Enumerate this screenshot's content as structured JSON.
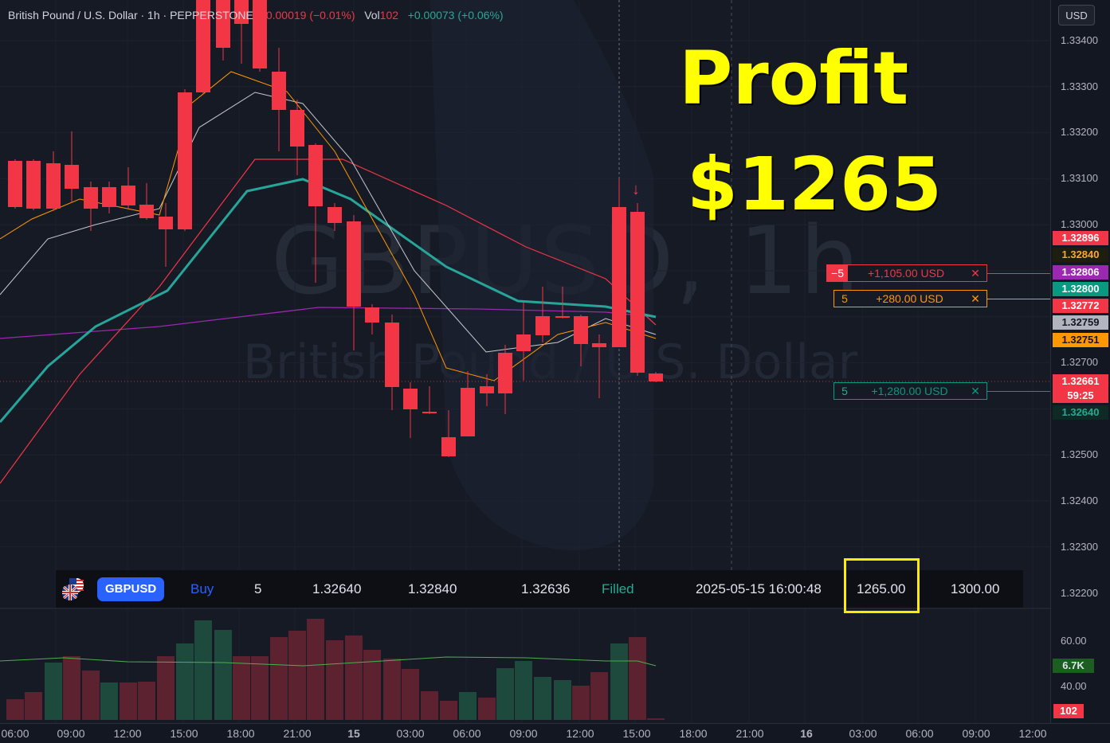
{
  "legend": {
    "symbol_desc": "British Pound / U.S. Dollar · 1h · PEPPERSTONE",
    "change": "−0.00019 (−0.01%)",
    "vol_label": "Vol",
    "vol_value": "102",
    "vol_change": "+0.00073 (+0.06%)"
  },
  "watermark": {
    "ticker": "GBPUSD, 1h",
    "name": "British Pound / U.S. Dollar"
  },
  "overlay": {
    "line1": "Profit",
    "line2": "$1265"
  },
  "axis": {
    "currency": "USD",
    "ticks": [
      "1.33400",
      "1.33300",
      "1.33200",
      "1.33100",
      "1.33000",
      "1.32700",
      "1.32500",
      "1.32400",
      "1.32300",
      "1.32200"
    ],
    "tags": [
      {
        "text": "1.32896",
        "bg": "#f23645",
        "fg": "#ffffff"
      },
      {
        "text": "1.32840",
        "bg": "#1e1e10",
        "fg": "#ffa726"
      },
      {
        "text": "1.32806",
        "bg": "#9c27b0",
        "fg": "#ffffff"
      },
      {
        "text": "1.32800",
        "bg": "#089981",
        "fg": "#ffffff"
      },
      {
        "text": "1.32772",
        "bg": "#f23645",
        "fg": "#ffffff"
      },
      {
        "text": "1.32759",
        "bg": "#b2b5be",
        "fg": "#131722"
      },
      {
        "text": "1.32751",
        "bg": "#ff9800",
        "fg": "#131722"
      },
      {
        "text": "1.32661",
        "bg": "#f23645",
        "fg": "#ffffff"
      },
      {
        "text": "59:25",
        "bg": "#f23645",
        "fg": "#ffffff"
      },
      {
        "text": "1.32640",
        "bg": "#0f2a25",
        "fg": "#22ab94"
      }
    ],
    "vol_ticks": [
      "60.00",
      "40.00"
    ],
    "vol_tags": [
      {
        "text": "6.7K",
        "bg": "#1b5e20",
        "fg": "#e0e3eb"
      },
      {
        "text": "102",
        "bg": "#f23645",
        "fg": "#ffffff"
      }
    ]
  },
  "orders": [
    {
      "qty": "−5",
      "pnl": "+1,105.00 USD",
      "close": "✕",
      "color": "#f23645",
      "qty_bg": "#f23645",
      "qty_fg": "#ffffff"
    },
    {
      "qty": "5",
      "pnl": "+280.00 USD",
      "close": "✕",
      "color": "#ff9800",
      "qty_bg": "#161a25",
      "qty_fg": "#ff9800"
    },
    {
      "qty": "5",
      "pnl": "+1,280.00 USD",
      "close": "✕",
      "color": "#089981",
      "qty_bg": "#161a25",
      "qty_fg": "#22ab94"
    }
  ],
  "trade": {
    "symbol": "GBPUSD",
    "side": "Buy",
    "qty": "5",
    "entry": "1.32640",
    "take_profit": "1.32840",
    "stop": "1.32636",
    "status": "Filled",
    "time": "2025-05-15 16:00:48",
    "profit": "1265.00",
    "target": "1300.00"
  },
  "time_axis": [
    "06:00",
    "09:00",
    "12:00",
    "15:00",
    "18:00",
    "21:00",
    "15",
    "03:00",
    "06:00",
    "09:00",
    "12:00",
    "15:00",
    "18:00",
    "21:00",
    "16",
    "03:00",
    "06:00",
    "09:00",
    "12:00"
  ],
  "colors": {
    "up": "#089981",
    "down": "#f23645",
    "accent": "#2962ff",
    "highlight": "#ffeb00"
  }
}
